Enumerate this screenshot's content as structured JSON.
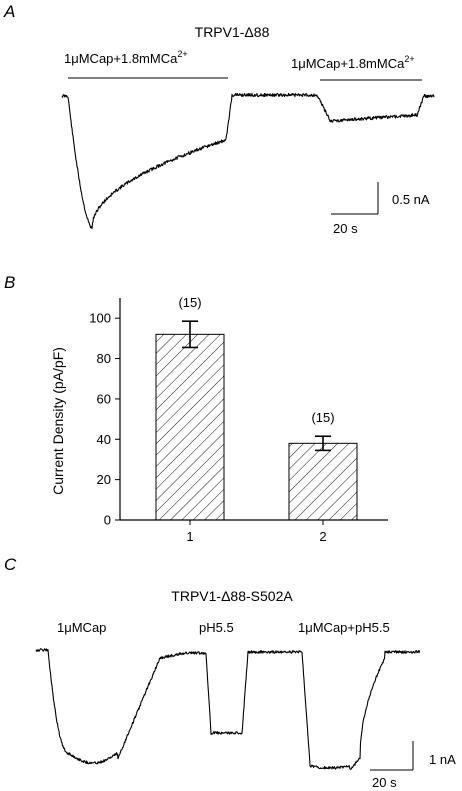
{
  "panel_a": {
    "letter": "A",
    "title": "TRPV1-Δ88",
    "label1": "1μMCap+1.8mMCa",
    "label1_sup": "2+",
    "label2": "1μMCap+1.8mMCa",
    "label2_sup": "2+",
    "scale_current": "0.5 nA",
    "scale_time": "20 s"
  },
  "panel_c": {
    "letter": "C",
    "title": "TRPV1-Δ88-S502A",
    "label1": "1μMCap",
    "label2": "pH5.5",
    "label3": "1μMCap+pH5.5",
    "scale_current": "1 nA",
    "scale_time": "20 s"
  },
  "chart_data": {
    "type": "bar",
    "letter": "B",
    "title": "",
    "xlabel": "",
    "ylabel": "Current Density (pA/pF)",
    "ylim": [
      0,
      110
    ],
    "yticks": [
      0,
      20,
      40,
      60,
      80,
      100
    ],
    "categories": [
      "1",
      "2"
    ],
    "values": [
      92,
      38
    ],
    "errors": [
      6.5,
      3.5
    ],
    "annotations": [
      "(15)",
      "(15)"
    ],
    "bar_fill": "hatched"
  }
}
